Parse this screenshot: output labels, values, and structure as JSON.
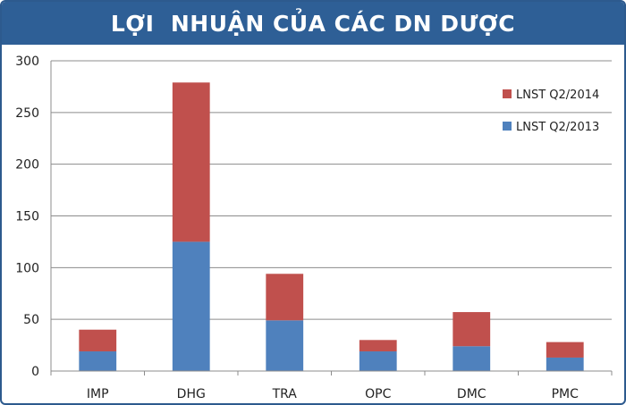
{
  "chart_data": {
    "type": "bar",
    "stacked": true,
    "title": "LỢI  NHUẬN CỦA CÁC DN DƯỢC",
    "categories": [
      "IMP",
      "DHG",
      "TRA",
      "OPC",
      "DMC",
      "PMC"
    ],
    "series": [
      {
        "name": "LNST Q2/2013",
        "color": "#4f81bd",
        "values": [
          19,
          125,
          49,
          19,
          24,
          13
        ]
      },
      {
        "name": "LNST Q2/2014",
        "color": "#c0504d",
        "values": [
          21,
          154,
          45,
          11,
          33,
          15
        ]
      }
    ],
    "ylim": [
      0,
      300
    ],
    "yticks": [
      0,
      50,
      100,
      150,
      200,
      250,
      300
    ],
    "grid": true,
    "legend_position": "top-right",
    "legend_order": [
      "LNST Q2/2014",
      "LNST Q2/2013"
    ],
    "xlabel": "",
    "ylabel": ""
  }
}
